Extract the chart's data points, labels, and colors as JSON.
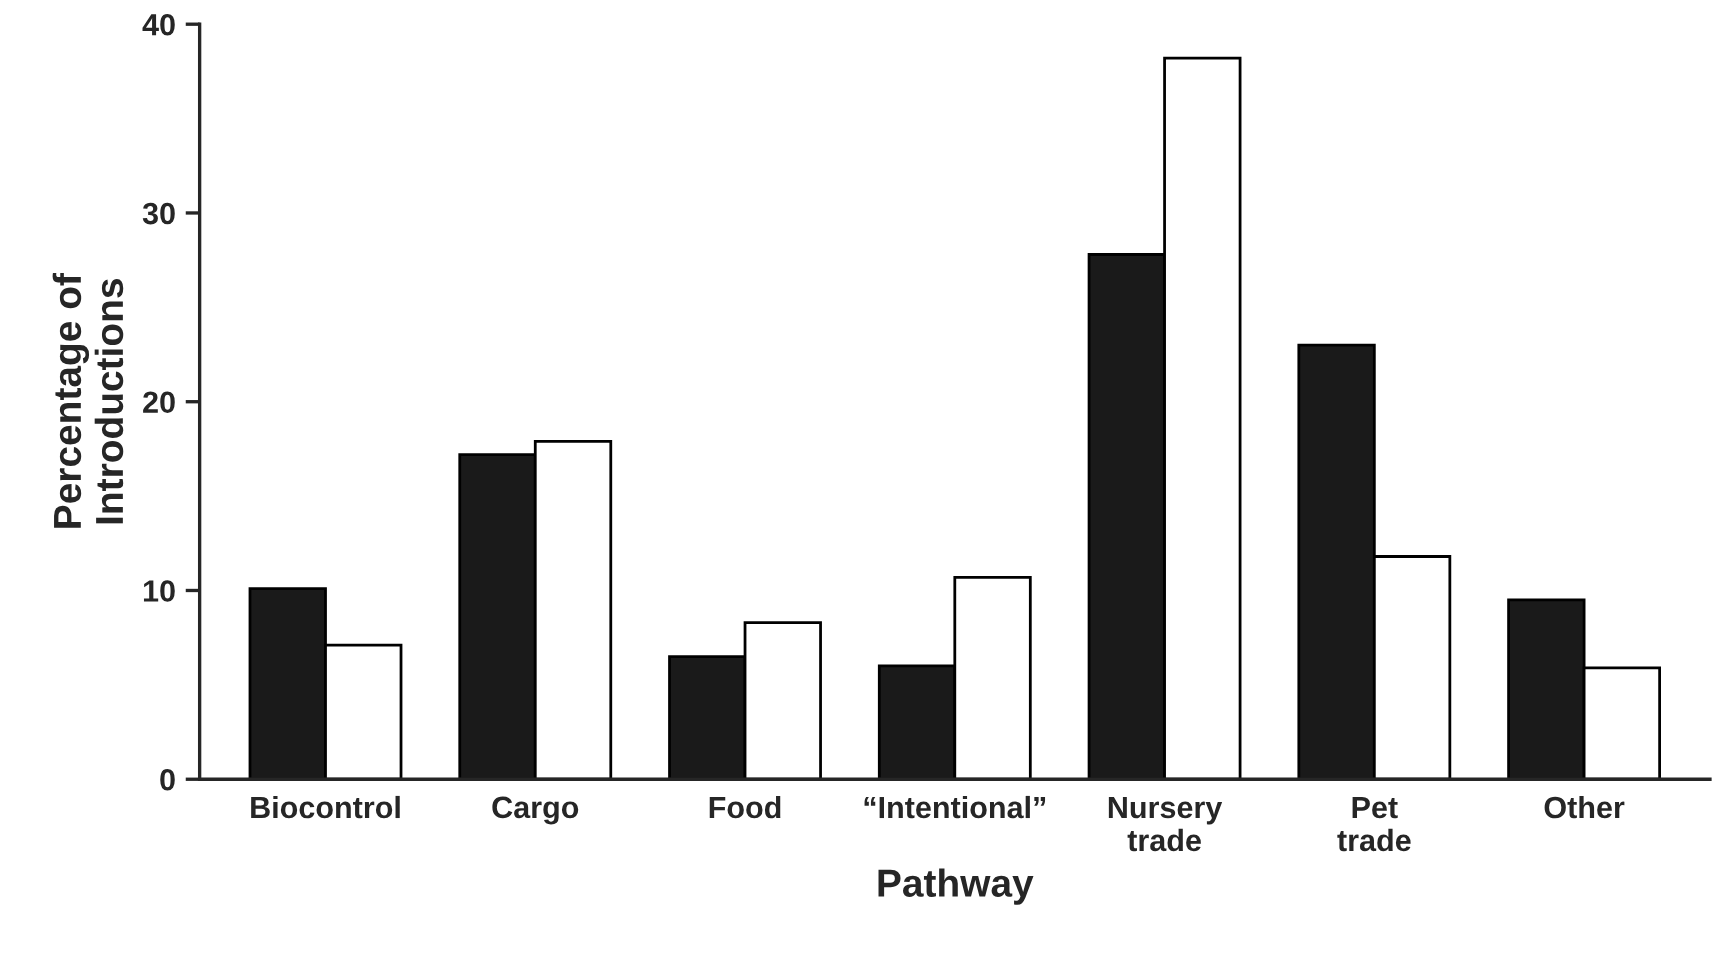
{
  "chart_data": {
    "type": "bar",
    "xlabel": "Pathway",
    "ylabel": "Percentage of\nIntroductions",
    "categories": [
      "Biocontrol",
      "Cargo",
      "Food",
      "“Intentional”",
      "Nursery\ntrade",
      "Pet\ntrade",
      "Other"
    ],
    "series": [
      {
        "color": "#1a1a1a",
        "values": [
          10.1,
          17.2,
          6.5,
          6.0,
          27.8,
          23.0,
          9.5
        ]
      },
      {
        "color": "#ffffff",
        "values": [
          7.1,
          17.9,
          8.3,
          10.7,
          38.2,
          11.8,
          5.9
        ]
      }
    ],
    "ylim": [
      0,
      40
    ],
    "yticks": [
      0,
      10,
      20,
      30,
      40
    ],
    "grid": false
  }
}
